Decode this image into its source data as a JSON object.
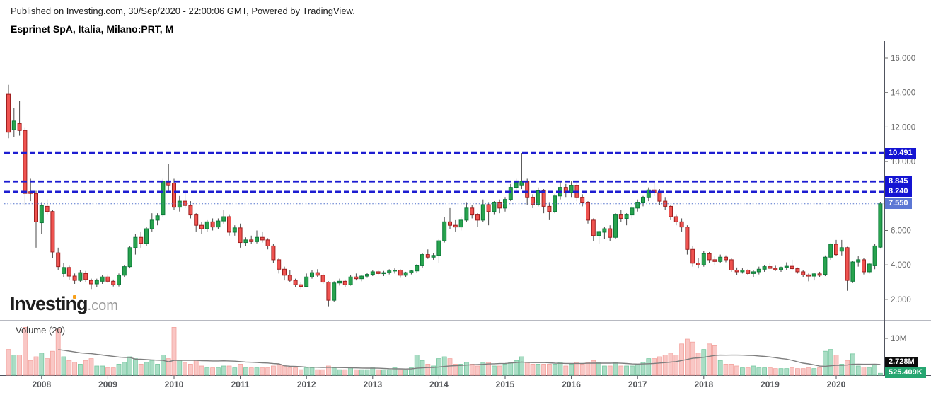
{
  "header": {
    "published_line": "Published on Investing.com, 30/Sep/2020 - 22:00:06 GMT, Powered by TradingView.",
    "instrument_title": "Esprinet SpA, Italia, Milano:PRT, M"
  },
  "watermark": {
    "brand": "Investing",
    "suffix": ".com"
  },
  "volume_pane": {
    "label": "Volume (20)",
    "scale_tick": "10M",
    "ma_value_label": "2.728M",
    "last_volume_label": "525.409K"
  },
  "price_axis": {
    "ticks": [
      "16.000",
      "14.000",
      "12.000",
      "10.000",
      "6.000",
      "4.000",
      "2.000"
    ],
    "tick_values": [
      16,
      14,
      12,
      10,
      6,
      4,
      2
    ]
  },
  "time_axis": {
    "years": [
      "2008",
      "2009",
      "2010",
      "2011",
      "2012",
      "2013",
      "2014",
      "2015",
      "2016",
      "2017",
      "2018",
      "2019",
      "2020"
    ]
  },
  "colors": {
    "candle_up_fill": "#28a34e",
    "candle_up_border": "#0c7a39",
    "candle_down_fill": "#ef5350",
    "candle_down_border": "#9f1f1f",
    "wick": "#4a4a4a",
    "vol_up_fill": "#aaddc5",
    "vol_up_border": "#79c9a1",
    "vol_down_fill": "#f9c7c5",
    "vol_down_border": "#f3a49f",
    "vol_ma_line": "#7e7e7e",
    "level_line": "#1d1dd1",
    "level_label_bg": "#1414d2",
    "current_line": "#5070cc",
    "current_label_bg": "#5c77d4",
    "ma_label_bg": "#0c0c0c",
    "lastvol_label_bg": "#26a671",
    "axis_text": "#6b6b6b",
    "year_text": "#54565a",
    "pane_border": "#50535e",
    "separator": "#b7b9c1",
    "watermark_orange": "#f7a01b"
  },
  "chart_data": {
    "type": "candlestick+volume",
    "title": "Esprinet SpA, Italia, Milano:PRT, M",
    "interval": "monthly",
    "start_month": "2007-07",
    "end_month": "2020-09",
    "price_ylim": [
      1.5,
      16.8
    ],
    "volume_axis_max_label": "10M",
    "volume_ma_period": 20,
    "current_price": 7.55,
    "volume_ma_current": "2.728M",
    "last_volume": "525.409K",
    "levels": [
      {
        "label": "10.491",
        "value": 10.491,
        "style": "bold-dashed"
      },
      {
        "label": "8.845",
        "value": 8.845,
        "style": "bold-dashed"
      },
      {
        "label": "8.240",
        "value": 8.24,
        "style": "bold-dashed"
      },
      {
        "label": "7.550",
        "value": 7.55,
        "style": "fine-dotted"
      }
    ],
    "candles": [
      [
        13.9,
        14.45,
        11.35,
        11.7
      ],
      [
        11.85,
        13.1,
        11.4,
        12.35
      ],
      [
        12.2,
        13.5,
        11.5,
        11.8
      ],
      [
        11.8,
        11.95,
        7.45,
        8.15
      ],
      [
        8.25,
        9.0,
        7.7,
        8.15
      ],
      [
        8.15,
        8.3,
        5.0,
        6.5
      ],
      [
        6.45,
        7.6,
        5.8,
        7.45
      ],
      [
        7.4,
        7.8,
        6.9,
        7.1
      ],
      [
        7.1,
        7.2,
        4.4,
        4.75
      ],
      [
        4.7,
        5.0,
        3.7,
        3.9
      ],
      [
        3.5,
        4.1,
        3.3,
        3.85
      ],
      [
        3.85,
        3.95,
        3.15,
        3.35
      ],
      [
        3.35,
        3.5,
        2.9,
        3.1
      ],
      [
        3.1,
        3.7,
        3.0,
        3.55
      ],
      [
        3.5,
        3.65,
        3.0,
        3.15
      ],
      [
        3.1,
        3.2,
        2.6,
        2.9
      ],
      [
        2.9,
        3.2,
        2.7,
        3.1
      ],
      [
        3.05,
        3.4,
        2.9,
        3.3
      ],
      [
        3.3,
        3.45,
        2.95,
        3.05
      ],
      [
        3.05,
        3.15,
        2.75,
        2.85
      ],
      [
        2.85,
        3.5,
        2.75,
        3.4
      ],
      [
        3.4,
        4.0,
        3.3,
        3.9
      ],
      [
        3.9,
        5.1,
        3.8,
        5.0
      ],
      [
        5.0,
        5.8,
        4.6,
        5.6
      ],
      [
        5.6,
        5.9,
        5.0,
        5.25
      ],
      [
        5.25,
        6.2,
        5.1,
        6.1
      ],
      [
        6.1,
        7.0,
        5.9,
        6.6
      ],
      [
        6.6,
        7.0,
        6.3,
        6.85
      ],
      [
        6.9,
        9.0,
        6.8,
        8.85
      ],
      [
        8.8,
        9.85,
        8.3,
        8.6
      ],
      [
        8.75,
        9.0,
        7.2,
        7.35
      ],
      [
        7.35,
        8.0,
        7.1,
        7.7
      ],
      [
        7.7,
        8.3,
        7.3,
        7.45
      ],
      [
        7.45,
        7.7,
        6.7,
        6.9
      ],
      [
        6.9,
        7.0,
        5.9,
        6.3
      ],
      [
        6.3,
        6.5,
        5.8,
        6.1
      ],
      [
        6.1,
        6.6,
        5.9,
        6.5
      ],
      [
        6.5,
        6.7,
        6.0,
        6.2
      ],
      [
        6.2,
        6.7,
        6.1,
        6.55
      ],
      [
        6.55,
        7.2,
        6.4,
        6.8
      ],
      [
        6.8,
        6.9,
        5.7,
        5.9
      ],
      [
        5.9,
        6.3,
        5.7,
        6.15
      ],
      [
        6.15,
        6.4,
        5.0,
        5.3
      ],
      [
        5.3,
        5.6,
        5.1,
        5.45
      ],
      [
        5.45,
        5.7,
        5.2,
        5.35
      ],
      [
        5.35,
        6.0,
        5.25,
        5.6
      ],
      [
        5.6,
        5.9,
        5.3,
        5.45
      ],
      [
        5.45,
        5.55,
        4.9,
        5.1
      ],
      [
        5.1,
        5.2,
        4.1,
        4.3
      ],
      [
        4.3,
        4.4,
        3.5,
        3.75
      ],
      [
        3.75,
        3.9,
        3.1,
        3.4
      ],
      [
        3.4,
        3.7,
        3.0,
        3.1
      ],
      [
        3.1,
        3.2,
        2.7,
        2.85
      ],
      [
        2.85,
        3.0,
        2.6,
        2.75
      ],
      [
        2.75,
        3.5,
        2.7,
        3.3
      ],
      [
        3.3,
        3.7,
        3.2,
        3.55
      ],
      [
        3.55,
        3.75,
        3.3,
        3.4
      ],
      [
        3.4,
        3.5,
        2.9,
        3.0
      ],
      [
        3.0,
        3.05,
        1.6,
        1.95
      ],
      [
        1.95,
        3.05,
        1.85,
        2.95
      ],
      [
        2.95,
        3.2,
        2.8,
        3.05
      ],
      [
        3.05,
        3.15,
        2.7,
        2.85
      ],
      [
        2.85,
        3.4,
        2.8,
        3.3
      ],
      [
        3.3,
        3.5,
        3.1,
        3.2
      ],
      [
        3.2,
        3.4,
        3.05,
        3.35
      ],
      [
        3.35,
        3.55,
        3.25,
        3.45
      ],
      [
        3.45,
        3.7,
        3.35,
        3.6
      ],
      [
        3.6,
        3.7,
        3.4,
        3.5
      ],
      [
        3.5,
        3.65,
        3.35,
        3.55
      ],
      [
        3.55,
        3.75,
        3.45,
        3.65
      ],
      [
        3.65,
        3.8,
        3.5,
        3.7
      ],
      [
        3.7,
        3.75,
        3.25,
        3.4
      ],
      [
        3.4,
        3.6,
        3.3,
        3.55
      ],
      [
        3.55,
        3.7,
        3.45,
        3.65
      ],
      [
        3.65,
        4.05,
        3.55,
        3.95
      ],
      [
        3.95,
        4.7,
        3.85,
        4.6
      ],
      [
        4.6,
        4.9,
        4.35,
        4.45
      ],
      [
        4.45,
        4.7,
        4.3,
        4.55
      ],
      [
        4.55,
        5.5,
        4.1,
        5.4
      ],
      [
        5.4,
        6.8,
        5.3,
        6.5
      ],
      [
        6.5,
        7.3,
        6.1,
        6.3
      ],
      [
        6.3,
        6.6,
        5.9,
        6.2
      ],
      [
        6.2,
        6.8,
        6.0,
        6.6
      ],
      [
        6.6,
        7.6,
        6.5,
        7.3
      ],
      [
        7.3,
        7.5,
        6.7,
        6.9
      ],
      [
        6.9,
        7.0,
        6.2,
        6.6
      ],
      [
        6.6,
        7.8,
        6.5,
        7.5
      ],
      [
        7.5,
        7.6,
        6.3,
        7.1
      ],
      [
        7.1,
        7.7,
        6.9,
        7.6
      ],
      [
        7.6,
        7.8,
        7.0,
        7.3
      ],
      [
        7.3,
        7.9,
        7.1,
        7.8
      ],
      [
        7.8,
        8.7,
        7.7,
        8.5
      ],
      [
        8.5,
        9.0,
        8.2,
        8.8
      ],
      [
        8.6,
        10.49,
        8.4,
        8.85
      ],
      [
        8.85,
        9.0,
        7.5,
        7.9
      ],
      [
        7.9,
        8.1,
        7.3,
        7.5
      ],
      [
        7.5,
        8.5,
        7.4,
        8.3
      ],
      [
        8.3,
        8.4,
        7.0,
        7.4
      ],
      [
        7.4,
        7.6,
        6.6,
        7.1
      ],
      [
        7.1,
        8.1,
        7.0,
        8.0
      ],
      [
        8.0,
        8.85,
        7.8,
        8.5
      ],
      [
        8.5,
        8.7,
        7.9,
        8.2
      ],
      [
        8.2,
        8.85,
        7.9,
        8.6
      ],
      [
        8.6,
        8.75,
        7.7,
        7.9
      ],
      [
        7.9,
        8.1,
        7.4,
        7.6
      ],
      [
        7.6,
        7.7,
        6.4,
        6.6
      ],
      [
        6.6,
        6.7,
        5.4,
        5.7
      ],
      [
        5.7,
        6.0,
        5.2,
        5.9
      ],
      [
        5.9,
        6.2,
        5.5,
        6.1
      ],
      [
        6.1,
        6.3,
        5.4,
        5.6
      ],
      [
        5.6,
        7.0,
        5.5,
        6.9
      ],
      [
        6.9,
        7.2,
        6.5,
        6.7
      ],
      [
        6.7,
        7.0,
        6.3,
        6.9
      ],
      [
        6.9,
        7.4,
        6.7,
        7.3
      ],
      [
        7.3,
        7.8,
        7.1,
        7.6
      ],
      [
        7.6,
        8.0,
        7.4,
        7.9
      ],
      [
        7.9,
        8.5,
        7.7,
        8.35
      ],
      [
        8.35,
        8.8,
        8.0,
        8.2
      ],
      [
        8.2,
        8.4,
        7.5,
        7.7
      ],
      [
        7.7,
        7.9,
        7.2,
        7.4
      ],
      [
        7.4,
        7.5,
        6.6,
        6.8
      ],
      [
        6.8,
        6.9,
        6.3,
        6.5
      ],
      [
        6.5,
        6.7,
        5.9,
        6.2
      ],
      [
        6.2,
        6.3,
        4.6,
        4.9
      ],
      [
        4.9,
        5.1,
        3.9,
        4.1
      ],
      [
        4.1,
        4.4,
        3.8,
        4.0
      ],
      [
        4.0,
        4.8,
        3.9,
        4.65
      ],
      [
        4.65,
        4.75,
        4.1,
        4.3
      ],
      [
        4.3,
        4.5,
        4.0,
        4.2
      ],
      [
        4.2,
        4.6,
        4.1,
        4.45
      ],
      [
        4.45,
        4.55,
        4.15,
        4.3
      ],
      [
        4.3,
        4.4,
        3.6,
        3.7
      ],
      [
        3.7,
        3.85,
        3.4,
        3.6
      ],
      [
        3.6,
        3.8,
        3.5,
        3.7
      ],
      [
        3.7,
        3.75,
        3.4,
        3.5
      ],
      [
        3.5,
        3.7,
        3.3,
        3.6
      ],
      [
        3.6,
        3.9,
        3.45,
        3.75
      ],
      [
        3.75,
        4.0,
        3.6,
        3.9
      ],
      [
        3.9,
        4.1,
        3.75,
        3.8
      ],
      [
        3.8,
        3.95,
        3.65,
        3.72
      ],
      [
        3.72,
        3.9,
        3.6,
        3.85
      ],
      [
        3.85,
        4.15,
        3.7,
        3.92
      ],
      [
        3.92,
        4.3,
        3.7,
        3.78
      ],
      [
        3.78,
        3.85,
        3.5,
        3.6
      ],
      [
        3.6,
        3.7,
        3.3,
        3.42
      ],
      [
        3.42,
        3.5,
        3.05,
        3.35
      ],
      [
        3.35,
        3.55,
        3.1,
        3.48
      ],
      [
        3.48,
        3.6,
        3.3,
        3.4
      ],
      [
        3.45,
        4.55,
        3.35,
        4.45
      ],
      [
        4.45,
        5.25,
        4.3,
        5.2
      ],
      [
        5.2,
        5.45,
        4.5,
        4.6
      ],
      [
        4.8,
        5.45,
        4.55,
        5.0
      ],
      [
        5.0,
        5.05,
        2.5,
        3.1
      ],
      [
        3.05,
        4.25,
        2.95,
        4.17
      ],
      [
        4.17,
        4.5,
        3.9,
        4.3
      ],
      [
        4.3,
        4.4,
        3.45,
        3.6
      ],
      [
        3.6,
        4.1,
        3.5,
        4.05
      ],
      [
        3.95,
        5.2,
        3.75,
        5.1
      ],
      [
        5.03,
        7.65,
        4.95,
        7.55
      ]
    ],
    "volumes_m": [
      7,
      5.5,
      5.5,
      13,
      4,
      5,
      6,
      4.5,
      6.5,
      12.5,
      5,
      4,
      3.5,
      3,
      4,
      4.5,
      2.5,
      2.5,
      2,
      2,
      3,
      3.5,
      5,
      4.5,
      3,
      3.5,
      4,
      3,
      5.5,
      4.5,
      13,
      4,
      3.5,
      3,
      4,
      2.5,
      2,
      2,
      2,
      2.5,
      2.5,
      2,
      3,
      2,
      2,
      2,
      2,
      2,
      2.5,
      3,
      2.5,
      2,
      2,
      1.5,
      2,
      2,
      1.5,
      1.5,
      2.5,
      2,
      1.5,
      1.5,
      2,
      1.5,
      1.5,
      1.5,
      2,
      1.5,
      1.5,
      1.5,
      2,
      1.5,
      1.5,
      2,
      5.5,
      4,
      3,
      2.5,
      4.5,
      5,
      4.5,
      3,
      3,
      3.5,
      3,
      2.5,
      3.5,
      3.5,
      2.5,
      2.5,
      3,
      3.5,
      4,
      5,
      3.5,
      3,
      3,
      3,
      3,
      3,
      3.5,
      2.5,
      3,
      3.5,
      3,
      3.5,
      4,
      3.5,
      2.5,
      2.5,
      3.5,
      2.5,
      2.5,
      2.5,
      3,
      3.5,
      4.5,
      4.5,
      5,
      5.5,
      6,
      5.5,
      8.5,
      9.8,
      9,
      6,
      7,
      8.5,
      8,
      4,
      3,
      3,
      2.5,
      2,
      2,
      2.5,
      2,
      2,
      2,
      1.8,
      1.8,
      1.8,
      2,
      1.8,
      1.8,
      2,
      1.8,
      2,
      6.5,
      7,
      5.5,
      3,
      4,
      5.8,
      2.5,
      2.2,
      2,
      2.8,
      0.525
    ]
  }
}
